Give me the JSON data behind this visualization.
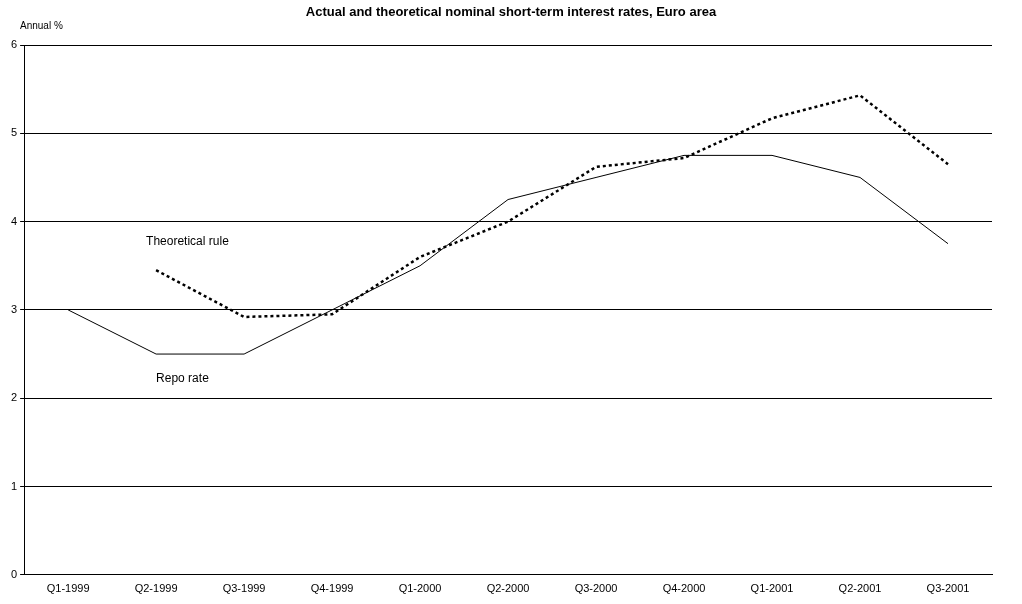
{
  "chart_data": {
    "type": "line",
    "title": "Actual and theoretical nominal short-term interest rates, Euro area",
    "ylabel": "Annual %",
    "categories": [
      "Q1-1999",
      "Q2-1999",
      "Q3-1999",
      "Q4-1999",
      "Q1-2000",
      "Q2-2000",
      "Q3-2000",
      "Q4-2000",
      "Q1-2001",
      "Q2-2001",
      "Q3-2001"
    ],
    "series": [
      {
        "name": "Repo rate",
        "color": "#000000",
        "line_style": "solid",
        "values": [
          3.0,
          2.5,
          2.5,
          3.0,
          3.5,
          4.25,
          4.5,
          4.75,
          4.75,
          4.5,
          3.75
        ]
      },
      {
        "name": "Theoretical rule",
        "color": "#000000",
        "line_style": "dotted",
        "values": [
          null,
          3.45,
          2.92,
          2.95,
          3.6,
          4.0,
          4.62,
          4.72,
          5.17,
          5.43,
          4.65
        ]
      }
    ],
    "ylim": [
      0,
      6
    ],
    "yticks": [
      0,
      1,
      2,
      3,
      4,
      5,
      6
    ],
    "grid": "y",
    "legend": false,
    "marker": "none"
  }
}
